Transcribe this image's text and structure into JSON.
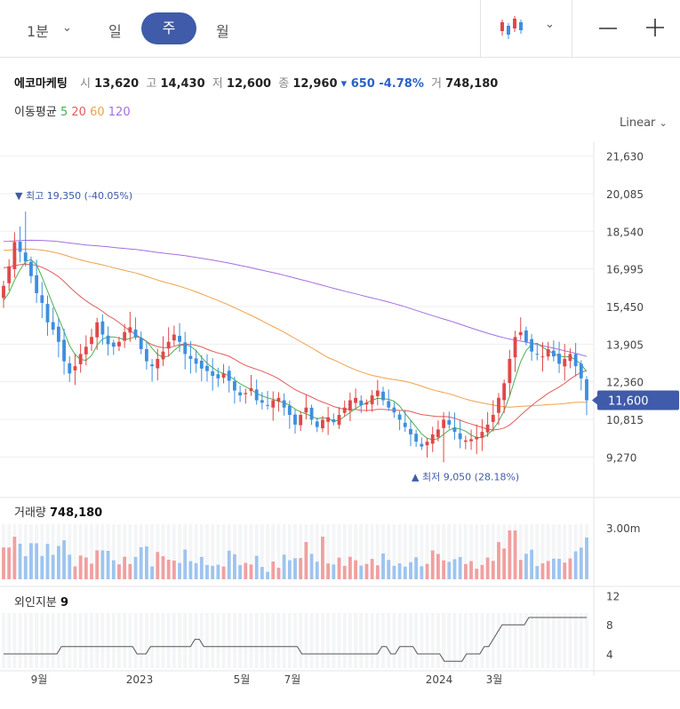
{
  "toolbar": {
    "interval": "1분",
    "day": "일",
    "week": "주",
    "month": "월",
    "chart_type_icon": "candlestick-icon",
    "zoom_out": "—",
    "zoom_in": "+"
  },
  "stock": {
    "name": "에코마케팅",
    "open_label": "시",
    "open": "13,620",
    "high_label": "고",
    "high": "14,430",
    "low_label": "저",
    "low": "12,600",
    "close_label": "종",
    "close": "12,960",
    "change": "▾ 650 -4.78%",
    "volume_label": "거",
    "volume": "748,180"
  },
  "ma": {
    "label": "이동평균",
    "p5": "5",
    "p20": "20",
    "p60": "60",
    "p120": "120",
    "colors": {
      "p5": "#4caf50",
      "p20": "#e45a5a",
      "p60": "#f0a04b",
      "p120": "#a66ee0"
    }
  },
  "scale_label": "Linear",
  "price_axis": [
    "21,630",
    "20,085",
    "18,540",
    "16,995",
    "15,450",
    "13,905",
    "12,360",
    "10,815",
    "9,270"
  ],
  "current_price": "11,600",
  "annotations": {
    "high": "▼ 최고 19,350 (-40.05%)",
    "low": "▲ 최저 9,050 (28.18%)"
  },
  "volume_panel": {
    "label": "거래량",
    "value": "748,180",
    "axis_label": "3.00m"
  },
  "foreign_panel": {
    "label": "외인지분",
    "value": "9",
    "axis": [
      "12",
      "8",
      "4"
    ]
  },
  "x_axis": [
    "9월",
    "2023",
    "5월",
    "7월",
    "2024",
    "3월"
  ],
  "colors": {
    "up": "#e04848",
    "down": "#3d8fe0",
    "up_vol": "#f0a0a0",
    "down_vol": "#9ec4ef",
    "accent": "#3f5ba9",
    "foreign": "#555555"
  },
  "chart_data": {
    "type": "candlestick",
    "title": "에코마케팅",
    "ylim": [
      8700,
      22200
    ],
    "moving_average_periods": [
      5,
      20,
      60,
      120
    ],
    "close": [
      16300,
      17100,
      18100,
      17700,
      17300,
      16700,
      16000,
      15600,
      14800,
      14500,
      14000,
      13200,
      12700,
      13000,
      13500,
      13800,
      14200,
      14800,
      14300,
      13900,
      13800,
      14000,
      14400,
      14600,
      14200,
      13700,
      13200,
      13000,
      13300,
      13600,
      14000,
      14300,
      14000,
      13500,
      13300,
      13100,
      12900,
      12800,
      12600,
      12500,
      12700,
      12400,
      12000,
      11800,
      11900,
      12100,
      11600,
      11500,
      11400,
      11600,
      11700,
      11300,
      11000,
      10600,
      11000,
      11300,
      10800,
      10500,
      10800,
      10900,
      10700,
      11000,
      11300,
      11600,
      11700,
      11400,
      11500,
      11800,
      12000,
      11600,
      11300,
      11100,
      10800,
      10500,
      10200,
      9900,
      9700,
      9900,
      10200,
      10400,
      10800,
      10600,
      10300,
      10000,
      9950,
      10000,
      10100,
      10300,
      10600,
      11000,
      11700,
      12300,
      13300,
      14200,
      14400,
      14000,
      13600,
      13500,
      13400,
      13700,
      13400,
      13100,
      13300,
      13500,
      13000,
      12500,
      11600
    ],
    "high_annotation": 19350,
    "low_annotation": 9050,
    "last_price": 11600,
    "volume_max_label": "3.00m",
    "foreign_ownership": [
      4,
      4,
      4,
      4,
      4,
      4,
      4,
      4,
      4,
      4,
      4,
      4,
      4,
      5,
      5,
      5,
      5,
      5,
      5,
      5,
      5,
      5,
      5,
      5,
      5,
      5,
      5,
      5,
      5,
      5,
      4,
      4,
      4,
      5,
      5,
      5,
      5,
      5,
      5,
      5,
      5,
      5,
      5,
      6,
      6,
      5,
      5,
      5,
      5,
      5,
      5,
      5,
      5,
      5,
      5,
      5,
      5,
      5,
      5,
      5,
      5,
      5,
      5,
      5,
      5,
      5,
      5,
      4,
      4,
      4,
      4,
      4,
      4,
      4,
      4,
      4,
      4,
      4,
      4,
      4,
      4,
      4,
      4,
      4,
      4,
      5,
      5,
      4,
      4,
      5,
      5,
      5,
      5,
      4,
      4,
      4,
      4,
      4,
      4,
      3,
      3,
      3,
      3,
      3,
      4,
      4,
      4,
      4,
      5,
      5,
      6,
      7,
      8,
      8,
      8,
      8,
      8,
      8,
      9,
      9,
      9,
      9,
      9,
      9,
      9,
      9,
      9,
      9,
      9,
      9,
      9,
      9
    ],
    "x_tick_labels": [
      "9월",
      "2023",
      "5월",
      "7월",
      "2024",
      "3월"
    ]
  }
}
